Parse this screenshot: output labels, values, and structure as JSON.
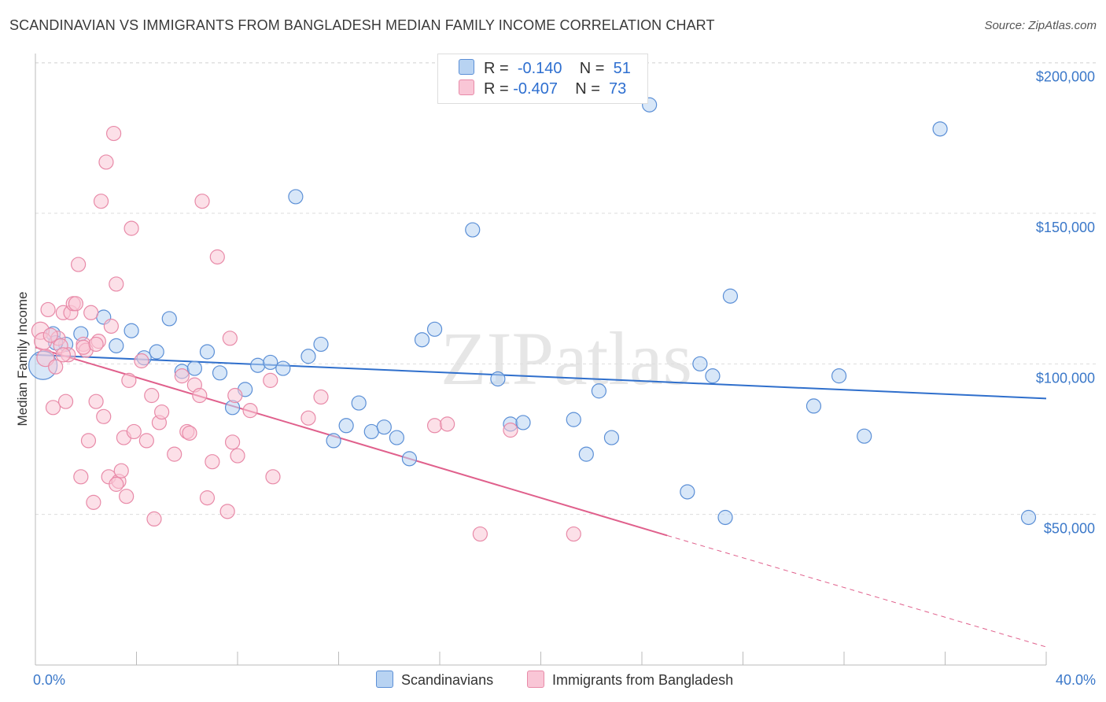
{
  "title": "SCANDINAVIAN VS IMMIGRANTS FROM BANGLADESH MEDIAN FAMILY INCOME CORRELATION CHART",
  "source": "Source: ZipAtlas.com",
  "watermark": "ZIPatlas",
  "legend": {
    "rows": [
      {
        "r_label": "R =",
        "r_value": "-0.140",
        "n_label": "N =",
        "n_value": "51"
      },
      {
        "r_label": "R =",
        "r_value": "-0.407",
        "n_label": "N =",
        "n_value": "73"
      }
    ]
  },
  "bottom_legend": {
    "series1": "Scandinavians",
    "series2": "Immigrants from Bangladesh"
  },
  "colors": {
    "blue_fill": "#b8d3f2",
    "blue_stroke": "#5b8fd6",
    "blue_line": "#2f6fcc",
    "pink_fill": "#f9c6d6",
    "pink_stroke": "#e88aa8",
    "pink_line": "#e0608c",
    "tick_text": "#3b78c9",
    "grid": "#dddddd"
  },
  "chart_data": {
    "type": "scatter",
    "title": "SCANDINAVIAN VS IMMIGRANTS FROM BANGLADESH MEDIAN FAMILY INCOME CORRELATION CHART",
    "xlabel": "",
    "ylabel": "Median Family Income",
    "xlim": [
      0,
      40
    ],
    "ylim": [
      0,
      210000
    ],
    "x_tick_labels": [
      "0.0%",
      "40.0%"
    ],
    "y_ticks": [
      50000,
      100000,
      150000,
      200000
    ],
    "y_tick_labels": [
      "$50,000",
      "$100,000",
      "$150,000",
      "$200,000"
    ],
    "series": [
      {
        "name": "Scandinavians",
        "R": -0.14,
        "N": 51,
        "trend": {
          "x": [
            0,
            40
          ],
          "y": [
            103000,
            88500
          ],
          "dashed_beyond": null
        },
        "points": [
          [
            0.3,
            99500,
            18
          ],
          [
            0.7,
            110000,
            9
          ],
          [
            1.2,
            106500,
            9
          ],
          [
            1.8,
            110000,
            9
          ],
          [
            2.7,
            115500,
            9
          ],
          [
            3.2,
            106000,
            9
          ],
          [
            3.8,
            111000,
            9
          ],
          [
            4.3,
            102000,
            9
          ],
          [
            4.8,
            104000,
            9
          ],
          [
            5.3,
            115000,
            9
          ],
          [
            5.8,
            97500,
            9
          ],
          [
            6.3,
            98500,
            9
          ],
          [
            6.8,
            104000,
            9
          ],
          [
            7.3,
            97000,
            9
          ],
          [
            7.8,
            85500,
            9
          ],
          [
            8.3,
            91500,
            9
          ],
          [
            8.8,
            99500,
            9
          ],
          [
            9.3,
            100500,
            9
          ],
          [
            9.8,
            98500,
            9
          ],
          [
            10.3,
            155500,
            9
          ],
          [
            10.8,
            102500,
            9
          ],
          [
            11.3,
            106500,
            9
          ],
          [
            11.8,
            74500,
            9
          ],
          [
            12.3,
            79500,
            9
          ],
          [
            12.8,
            87000,
            9
          ],
          [
            13.3,
            77500,
            9
          ],
          [
            13.8,
            79000,
            9
          ],
          [
            14.3,
            75500,
            9
          ],
          [
            14.8,
            68500,
            9
          ],
          [
            15.3,
            108000,
            9
          ],
          [
            15.8,
            111500,
            9
          ],
          [
            17.3,
            144500,
            9
          ],
          [
            18.3,
            95000,
            9
          ],
          [
            18.8,
            80000,
            9
          ],
          [
            19.3,
            80500,
            9
          ],
          [
            21.3,
            81500,
            9
          ],
          [
            21.8,
            70000,
            9
          ],
          [
            22.3,
            91000,
            9
          ],
          [
            22.8,
            75500,
            9
          ],
          [
            24.3,
            186000,
            9
          ],
          [
            25.8,
            57500,
            9
          ],
          [
            26.3,
            100000,
            9
          ],
          [
            26.8,
            96000,
            9
          ],
          [
            27.3,
            49000,
            9
          ],
          [
            27.5,
            122500,
            9
          ],
          [
            30.8,
            86000,
            9
          ],
          [
            31.8,
            96000,
            9
          ],
          [
            32.8,
            76000,
            9
          ],
          [
            35.8,
            178000,
            9
          ],
          [
            39.3,
            49000,
            9
          ],
          [
            0.8,
            107000,
            9
          ]
        ]
      },
      {
        "name": "Immigrants from Bangladesh",
        "R": -0.407,
        "N": 73,
        "trend": {
          "x": [
            0,
            25
          ],
          "y": [
            105500,
            43000
          ],
          "dashed_to": {
            "x": 40,
            "y": 6000
          }
        },
        "points": [
          [
            0.2,
            111000,
            11
          ],
          [
            0.3,
            107500,
            11
          ],
          [
            0.4,
            102000,
            11
          ],
          [
            0.5,
            118000,
            9
          ],
          [
            0.7,
            85500,
            9
          ],
          [
            0.8,
            99000,
            9
          ],
          [
            0.9,
            108500,
            9
          ],
          [
            1.0,
            106000,
            9
          ],
          [
            1.1,
            117000,
            9
          ],
          [
            1.2,
            87500,
            9
          ],
          [
            1.3,
            103000,
            9
          ],
          [
            1.4,
            117000,
            9
          ],
          [
            1.5,
            120000,
            9
          ],
          [
            1.6,
            120000,
            9
          ],
          [
            1.7,
            133000,
            9
          ],
          [
            1.8,
            62500,
            9
          ],
          [
            1.9,
            106500,
            9
          ],
          [
            2.0,
            104500,
            9
          ],
          [
            2.1,
            74500,
            9
          ],
          [
            2.2,
            117000,
            9
          ],
          [
            2.3,
            54000,
            9
          ],
          [
            2.4,
            87500,
            9
          ],
          [
            2.5,
            107500,
            9
          ],
          [
            2.6,
            154000,
            9
          ],
          [
            2.7,
            82500,
            9
          ],
          [
            2.8,
            167000,
            9
          ],
          [
            2.9,
            62500,
            9
          ],
          [
            3.0,
            112500,
            9
          ],
          [
            3.1,
            176500,
            9
          ],
          [
            3.2,
            126500,
            9
          ],
          [
            3.3,
            61000,
            9
          ],
          [
            3.4,
            64500,
            9
          ],
          [
            3.5,
            75500,
            9
          ],
          [
            3.6,
            56000,
            9
          ],
          [
            3.7,
            94500,
            9
          ],
          [
            3.8,
            145000,
            9
          ],
          [
            3.9,
            77500,
            9
          ],
          [
            4.2,
            101000,
            9
          ],
          [
            4.4,
            74500,
            9
          ],
          [
            4.6,
            89500,
            9
          ],
          [
            4.7,
            48500,
            9
          ],
          [
            4.9,
            80500,
            9
          ],
          [
            5.0,
            84000,
            9
          ],
          [
            5.5,
            70000,
            9
          ],
          [
            5.8,
            96000,
            9
          ],
          [
            6.0,
            77500,
            9
          ],
          [
            6.1,
            77000,
            9
          ],
          [
            6.3,
            93000,
            9
          ],
          [
            6.5,
            89500,
            9
          ],
          [
            6.6,
            154000,
            9
          ],
          [
            6.8,
            55500,
            9
          ],
          [
            7.0,
            67500,
            9
          ],
          [
            7.2,
            135500,
            9
          ],
          [
            7.6,
            51000,
            9
          ],
          [
            7.7,
            108500,
            9
          ],
          [
            7.8,
            74000,
            9
          ],
          [
            7.9,
            89500,
            9
          ],
          [
            8.0,
            69500,
            9
          ],
          [
            8.5,
            84500,
            9
          ],
          [
            9.3,
            94500,
            9
          ],
          [
            9.4,
            62500,
            9
          ],
          [
            10.8,
            82000,
            9
          ],
          [
            11.3,
            89000,
            9
          ],
          [
            15.8,
            79500,
            9
          ],
          [
            16.3,
            80000,
            9
          ],
          [
            17.6,
            43500,
            9
          ],
          [
            18.8,
            78000,
            9
          ],
          [
            21.3,
            43500,
            9
          ],
          [
            1.9,
            105500,
            9
          ],
          [
            0.6,
            109500,
            9
          ],
          [
            1.1,
            103000,
            9
          ],
          [
            2.4,
            106500,
            9
          ],
          [
            3.2,
            60000,
            9
          ]
        ]
      }
    ]
  }
}
